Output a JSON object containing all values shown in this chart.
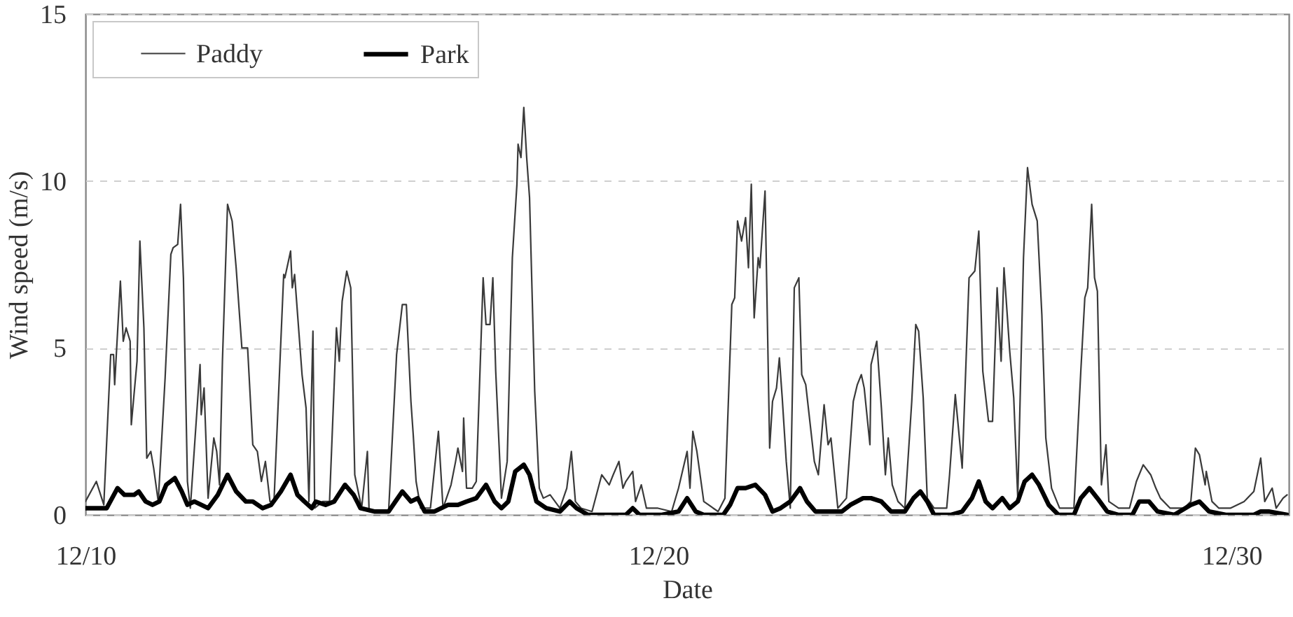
{
  "chart_data": {
    "type": "line",
    "xlabel": "Date",
    "ylabel": "Wind speed (m/s)",
    "xlim": [
      "--12-10",
      "--12-31"
    ],
    "xticks": [
      {
        "value": "--12-10",
        "label": "12/10"
      },
      {
        "value": "--12-20",
        "label": "12/20"
      },
      {
        "value": "--12-30",
        "label": "12/30"
      }
    ],
    "ylim": [
      0,
      15
    ],
    "yticks": [
      0,
      5,
      10,
      15
    ],
    "grid": "y",
    "legend": "top left",
    "series": [
      {
        "name": "Paddy",
        "color": "#3a3a3a",
        "x": [
          "--12-10T00:00",
          "--12-10T04:34",
          "--12-10T07:41",
          "--12-10T10:34",
          "--12-10T11:46",
          "--12-10T12:14",
          "--12-10T14:38",
          "--12-10T15:50",
          "--12-10T17:02",
          "--12-10T18:43",
          "--12-10T19:12",
          "--12-10T21:36",
          "--12-10T22:48",
          "--12-11T00:29",
          "--12-11T01:41",
          "--12-11T03:22",
          "--12-11T04:34",
          "--12-11T06:29",
          "--12-11T09:22",
          "--12-11T11:46",
          "--12-11T12:43",
          "--12-11T14:38",
          "--12-11T15:50",
          "--12-11T17:02",
          "--12-11T18:43",
          "--12-11T19:55",
          "--12-12T00:00",
          "--12-12T00:29",
          "--12-12T01:41",
          "--12-12T03:22",
          "--12-12T05:46",
          "--12-12T06:58",
          "--12-12T08:10",
          "--12-12T09:22",
          "--12-12T11:31",
          "--12-12T13:26",
          "--12-12T15:07",
          "--12-12T17:31",
          "--12-12T19:55",
          "--12-12T22:05",
          "--12-13T00:00",
          "--12-13T01:41",
          "--12-13T03:22",
          "--12-13T05:17",
          "--12-13T06:58",
          "--12-13T11:02",
          "--12-13T11:31",
          "--12-13T13:55",
          "--12-13T14:38",
          "--12-13T15:36",
          "--12-13T18:43",
          "--12-13T20:24",
          "--12-13T21:36",
          "--12-13T23:17",
          "--12-14T00:00",
          "--12-14T03:22",
          "--12-14T06:14",
          "--12-14T09:07",
          "--12-14T10:19",
          "--12-14T11:31",
          "--12-14T13:26",
          "--12-14T15:07",
          "--12-14T16:48",
          "--12-14T19:41",
          "--12-14T22:05",
          "--12-14T22:48",
          "--12-15T06:58",
          "--12-15T10:19",
          "--12-15T12:43",
          "--12-15T14:24",
          "--12-15T16:19",
          "--12-15T17:17",
          "--12-15T18:29",
          "--12-15T20:24",
          "--12-16T00:29",
          "--12-16T03:50",
          "--12-16T05:46",
          "--12-16T09:07",
          "--12-16T11:02",
          "--12-16T12:00",
          "--12-16T13:55",
          "--12-16T14:24",
          "--12-16T15:36",
          "--12-16T18:00",
          "--12-16T19:41",
          "--12-16T22:34",
          "--12-16T23:46",
          "--12-17T01:26",
          "--12-17T02:38",
          "--12-17T03:50",
          "--12-17T06:14",
          "--12-17T08:38",
          "--12-17T10:48",
          "--12-17T12:43",
          "--12-17T13:12",
          "--12-17T14:24",
          "--12-17T15:36",
          "--12-17T16:48",
          "--12-17T18:00",
          "--12-17T20:10",
          "--12-17T22:05",
          "--12-17T23:46",
          "--12-18T02:38",
          "--12-18T06:43",
          "--12-18T09:36",
          "--12-18T11:31",
          "--12-18T13:12",
          "--12-18T15:36",
          "--12-18T20:10",
          "--12-19T00:14",
          "--12-19T03:22",
          "--12-19T05:02",
          "--12-19T07:26",
          "--12-19T09:07",
          "--12-19T10:19",
          "--12-19T13:12",
          "--12-19T14:24",
          "--12-19T16:48",
          "--12-19T18:58",
          "--12-19T23:46",
          "--12-20T05:31",
          "--12-20T08:24",
          "--12-20T12:00",
          "--12-20T13:12",
          "--12-20T14:24",
          "--12-20T16:05",
          "--12-20T18:58",
          "--12-21T00:58",
          "--12-21T03:50",
          "--12-21T06:43",
          "--12-21T07:55",
          "--12-21T09:07",
          "--12-21T10:48",
          "--12-21T12:29",
          "--12-21T13:41",
          "--12-21T14:53",
          "--12-21T16:05",
          "--12-21T17:46",
          "--12-21T18:29",
          "--12-21T20:38",
          "--12-21T22:34",
          "--12-21T23:46",
          "--12-22T01:26",
          "--12-22T02:38",
          "--12-22T03:50",
          "--12-22T05:31",
          "--12-22T07:12",
          "--12-22T08:53",
          "--12-22T10:48",
          "--12-22T12:00",
          "--12-22T13:41",
          "--12-22T17:17",
          "--12-22T18:58",
          "--12-22T21:22",
          "--12-22T23:02",
          "--12-23T00:14",
          "--12-23T03:07",
          "--12-23T06:43",
          "--12-23T09:36",
          "--12-23T11:17",
          "--12-23T12:58",
          "--12-23T14:10",
          "--12-23T16:34",
          "--12-23T17:02",
          "--12-23T19:26",
          "--12-23T21:22",
          "--12-23T23:02",
          "--12-24T00:14",
          "--12-24T01:55",
          "--12-24T04:19",
          "--12-24T07:12",
          "--12-24T10:05",
          "--12-24T11:46",
          "--12-24T12:58",
          "--12-24T14:53",
          "--12-24T16:34",
          "--12-24T19:26",
          "--12-25T00:43",
          "--12-25T01:55",
          "--12-25T04:19",
          "--12-25T07:12",
          "--12-25T10:05",
          "--12-25T12:29",
          "--12-25T14:10",
          "--12-25T15:50",
          "--12-25T18:14",
          "--12-25T19:55",
          "--12-25T21:50",
          "--12-25T23:31",
          "--12-26T00:43",
          "--12-26T03:07",
          "--12-26T04:48",
          "--12-26T06:29",
          "--12-26T08:53",
          "--12-26T10:34",
          "--12-26T12:29",
          "--12-26T14:38",
          "--12-26T16:34",
          "--12-26T18:14",
          "--12-26T20:38",
          "--12-27T00:00",
          "--12-27T06:00",
          "--12-27T08:53",
          "--12-27T10:34",
          "--12-27T11:46",
          "--12-27T13:26",
          "--12-27T14:38",
          "--12-27T15:50",
          "--12-27T17:31",
          "--12-27T19:26",
          "--12-27T20:38",
          "--12-28T00:43",
          "--12-28T05:17",
          "--12-28T08:10",
          "--12-28T11:02",
          "--12-28T14:10",
          "--12-28T16:19",
          "--12-28T18:14",
          "--12-28T22:19",
          "--12-29T04:05",
          "--12-29T06:58",
          "--12-29T08:53",
          "--12-29T10:34",
          "--12-29T12:58",
          "--12-29T13:26",
          "--12-29T15:50",
          "--12-29T18:43",
          "--12-29T23:31",
          "--12-30T05:17",
          "--12-30T09:22",
          "--12-30T12:14",
          "--12-30T13:55",
          "--12-30T17:02",
          "--12-30T18:43",
          "--12-30T21:36",
          "--12-30T23:17"
        ],
        "values": [
          0.4,
          1.0,
          0.3,
          4.8,
          4.8,
          3.9,
          7.0,
          5.2,
          5.6,
          5.2,
          2.7,
          4.6,
          8.2,
          5.6,
          1.7,
          1.9,
          1.4,
          0.4,
          4.1,
          7.8,
          8.0,
          8.1,
          9.3,
          7.1,
          1.0,
          0.2,
          4.5,
          3.0,
          3.8,
          0.5,
          2.3,
          1.9,
          0.9,
          4.6,
          9.3,
          8.8,
          7.4,
          5.0,
          5.0,
          2.1,
          1.9,
          1.0,
          1.6,
          0.4,
          0.4,
          7.2,
          7.1,
          7.9,
          6.8,
          7.2,
          4.2,
          3.2,
          0.4,
          5.5,
          0.2,
          0.4,
          0.4,
          5.6,
          4.6,
          6.4,
          7.3,
          6.8,
          1.2,
          0.2,
          1.9,
          0.1,
          0.1,
          4.8,
          6.3,
          6.3,
          3.4,
          2.4,
          1.0,
          0.2,
          0.2,
          2.5,
          0.2,
          0.9,
          1.6,
          2.0,
          1.3,
          2.9,
          0.8,
          0.8,
          1.0,
          7.1,
          5.7,
          5.7,
          7.1,
          4.3,
          0.5,
          1.6,
          7.7,
          9.9,
          11.1,
          10.7,
          12.2,
          10.7,
          9.5,
          3.7,
          0.8,
          0.5,
          0.6,
          0.2,
          0.8,
          1.9,
          0.4,
          0.2,
          0.1,
          1.2,
          0.9,
          1.2,
          1.6,
          0.8,
          1.0,
          1.3,
          0.4,
          0.9,
          0.2,
          0.2,
          0.1,
          0.8,
          1.9,
          0.8,
          2.5,
          1.9,
          0.4,
          0.1,
          0.5,
          6.3,
          6.5,
          8.8,
          8.2,
          8.9,
          7.4,
          9.9,
          5.9,
          7.7,
          7.4,
          9.7,
          2.0,
          3.4,
          3.8,
          4.7,
          3.5,
          1.6,
          0.2,
          6.8,
          7.1,
          4.2,
          3.9,
          1.6,
          1.2,
          3.3,
          2.1,
          2.3,
          0.2,
          0.5,
          3.4,
          3.9,
          4.2,
          3.8,
          2.1,
          4.5,
          5.2,
          3.2,
          1.2,
          2.3,
          0.9,
          0.4,
          0.2,
          3.4,
          5.7,
          5.5,
          3.5,
          0.5,
          0.2,
          0.2,
          1.2,
          3.6,
          1.4,
          7.1,
          7.3,
          8.5,
          4.3,
          2.8,
          2.8,
          6.8,
          4.6,
          7.4,
          4.9,
          3.5,
          0.5,
          7.7,
          10.4,
          9.3,
          8.8,
          6.0,
          2.3,
          0.8,
          0.2,
          0.2,
          4.3,
          6.5,
          6.8,
          9.3,
          7.1,
          6.7,
          0.9,
          2.1,
          0.4,
          0.2,
          0.2,
          1.0,
          1.5,
          1.2,
          0.8,
          0.5,
          0.2,
          0.2,
          0.4,
          2.0,
          1.8,
          0.9,
          1.3,
          0.4,
          0.2,
          0.2,
          0.4,
          0.7,
          1.7,
          0.4,
          0.8,
          0.2,
          0.5,
          0.6
        ]
      },
      {
        "name": "Park",
        "color": "#000000",
        "x": [
          "--12-10T00:00",
          "--12-10T02:53",
          "--12-10T08:53",
          "--12-10T13:26",
          "--12-10T16:19",
          "--12-10T20:24",
          "--12-10T22:19",
          "--12-11T01:12",
          "--12-11T04:05",
          "--12-11T06:58",
          "--12-11T09:50",
          "--12-11T13:26",
          "--12-11T16:19",
          "--12-11T18:43",
          "--12-11T21:36",
          "--12-12T00:29",
          "--12-12T03:22",
          "--12-12T07:26",
          "--12-12T11:31",
          "--12-12T15:07",
          "--12-12T19:12",
          "--12-12T22:05",
          "--12-13T02:10",
          "--12-13T05:46",
          "--12-13T09:50",
          "--12-13T13:55",
          "--12-13T16:48",
          "--12-13T19:41",
          "--12-13T22:48",
          "--12-14T00:29",
          "--12-14T04:34",
          "--12-14T08:10",
          "--12-14T12:43",
          "--12-14T16:19",
          "--12-14T19:12",
          "--12-15T00:58",
          "--12-15T06:58",
          "--12-15T09:50",
          "--12-15T12:43",
          "--12-15T16:19",
          "--12-15T19:12",
          "--12-15T22:05",
          "--12-16T02:10",
          "--12-16T07:55",
          "--12-16T12:00",
          "--12-16T15:36",
          "--12-16T19:41",
          "--12-16T23:46",
          "--12-17T03:22",
          "--12-17T06:14",
          "--12-17T09:07",
          "--12-17T12:00",
          "--12-17T15:36",
          "--12-17T18:00",
          "--12-17T20:53",
          "--12-18T00:58",
          "--12-18T06:43",
          "--12-18T10:48",
          "--12-18T13:41",
          "--12-18T18:29",
          "--12-19T02:10",
          "--12-19T10:19",
          "--12-19T13:12",
          "--12-19T16:05",
          "--12-20T01:26",
          "--12-20T08:24",
          "--12-20T12:00",
          "--12-20T15:36",
          "--12-20T18:58",
          "--12-21T03:07",
          "--12-21T06:00",
          "--12-21T09:07",
          "--12-21T12:29",
          "--12-21T16:34",
          "--12-21T20:38",
          "--12-21T23:46",
          "--12-22T03:07",
          "--12-22T07:12",
          "--12-22T11:17",
          "--12-22T14:10",
          "--12-22T17:46",
          "--12-22T23:31",
          "--12-23T04:48",
          "--12-23T08:24",
          "--12-23T13:41",
          "--12-23T17:02",
          "--12-23T21:22",
          "--12-24T01:26",
          "--12-24T07:12",
          "--12-24T10:48",
          "--12-24T13:41",
          "--12-24T16:34",
          "--12-24T19:26",
          "--12-25T02:24",
          "--12-25T07:12",
          "--12-25T11:17",
          "--12-25T14:10",
          "--12-25T17:02",
          "--12-25T19:55",
          "--12-26T00:00",
          "--12-26T03:07",
          "--12-26T06:29",
          "--12-26T09:22",
          "--12-26T12:29",
          "--12-26T15:22",
          "--12-26T19:26",
          "--12-26T23:31",
          "--12-27T06:00",
          "--12-27T08:53",
          "--12-27T12:29",
          "--12-27T15:50",
          "--12-27T19:55",
          "--12-28T00:43",
          "--12-28T06:29",
          "--12-28T09:22",
          "--12-28T13:26",
          "--12-28T17:02",
          "--12-29T00:00",
          "--12-29T06:58",
          "--12-29T10:34",
          "--12-29T14:38",
          "--12-29T21:36",
          "--12-30T09:22",
          "--12-30T12:14",
          "--12-30T15:36",
          "--12-30T23:17"
        ],
        "values": [
          0.2,
          0.2,
          0.2,
          0.8,
          0.6,
          0.6,
          0.7,
          0.4,
          0.3,
          0.4,
          0.9,
          1.1,
          0.7,
          0.3,
          0.4,
          0.3,
          0.2,
          0.6,
          1.2,
          0.7,
          0.4,
          0.4,
          0.2,
          0.3,
          0.7,
          1.2,
          0.6,
          0.4,
          0.2,
          0.4,
          0.3,
          0.4,
          0.9,
          0.6,
          0.2,
          0.1,
          0.1,
          0.4,
          0.7,
          0.4,
          0.5,
          0.1,
          0.1,
          0.3,
          0.3,
          0.4,
          0.5,
          0.9,
          0.4,
          0.2,
          0.4,
          1.3,
          1.5,
          1.2,
          0.4,
          0.2,
          0.1,
          0.4,
          0.2,
          0.0,
          0.0,
          0.0,
          0.2,
          0.0,
          0.0,
          0.1,
          0.5,
          0.1,
          0.0,
          0.0,
          0.3,
          0.8,
          0.8,
          0.9,
          0.6,
          0.1,
          0.2,
          0.4,
          0.8,
          0.4,
          0.1,
          0.1,
          0.1,
          0.3,
          0.5,
          0.5,
          0.4,
          0.1,
          0.1,
          0.5,
          0.7,
          0.4,
          0.0,
          0.0,
          0.1,
          0.5,
          1.0,
          0.4,
          0.2,
          0.5,
          0.2,
          0.4,
          1.0,
          1.2,
          0.9,
          0.3,
          0.0,
          0.0,
          0.5,
          0.8,
          0.5,
          0.1,
          0.0,
          0.0,
          0.4,
          0.4,
          0.1,
          0.0,
          0.3,
          0.4,
          0.1,
          0.0,
          0.0,
          0.1,
          0.1,
          0.0
        ]
      }
    ]
  }
}
